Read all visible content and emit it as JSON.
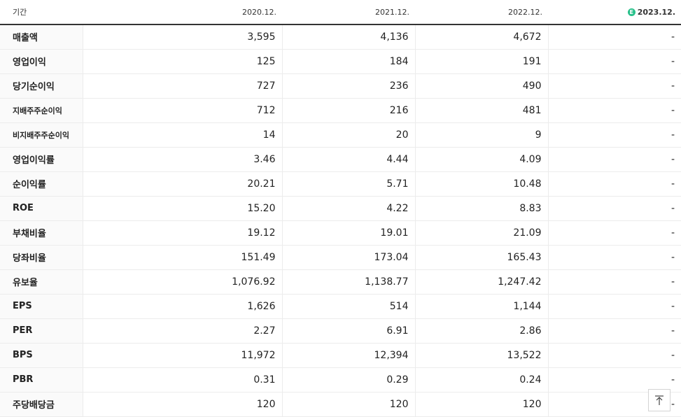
{
  "header": {
    "period_label": "기간",
    "years": [
      "2020.12.",
      "2021.12.",
      "2022.12.",
      "2023.12."
    ],
    "estimate_icon_glyph": "E",
    "estimate_icon": "estimate-icon",
    "estimate_color": "#27c08a"
  },
  "rows": [
    {
      "label": "매출액",
      "values": [
        "3,595",
        "4,136",
        "4,672",
        "-"
      ]
    },
    {
      "label": "영업이익",
      "values": [
        "125",
        "184",
        "191",
        "-"
      ]
    },
    {
      "label": "당기순이익",
      "values": [
        "727",
        "236",
        "490",
        "-"
      ]
    },
    {
      "label": "지배주주순이익",
      "values": [
        "712",
        "216",
        "481",
        "-"
      ]
    },
    {
      "label": "비지배주주순이익",
      "values": [
        "14",
        "20",
        "9",
        "-"
      ]
    },
    {
      "label": "영업이익률",
      "values": [
        "3.46",
        "4.44",
        "4.09",
        "-"
      ]
    },
    {
      "label": "순이익률",
      "values": [
        "20.21",
        "5.71",
        "10.48",
        "-"
      ]
    },
    {
      "label": "ROE",
      "values": [
        "15.20",
        "4.22",
        "8.83",
        "-"
      ]
    },
    {
      "label": "부채비율",
      "values": [
        "19.12",
        "19.01",
        "21.09",
        "-"
      ]
    },
    {
      "label": "당좌비율",
      "values": [
        "151.49",
        "173.04",
        "165.43",
        "-"
      ]
    },
    {
      "label": "유보율",
      "values": [
        "1,076.92",
        "1,138.77",
        "1,247.42",
        "-"
      ]
    },
    {
      "label": "EPS",
      "values": [
        "1,626",
        "514",
        "1,144",
        "-"
      ]
    },
    {
      "label": "PER",
      "values": [
        "2.27",
        "6.91",
        "2.86",
        "-"
      ]
    },
    {
      "label": "BPS",
      "values": [
        "11,972",
        "12,394",
        "13,522",
        "-"
      ]
    },
    {
      "label": "PBR",
      "values": [
        "0.31",
        "0.29",
        "0.24",
        "-"
      ]
    },
    {
      "label": "주당배당금",
      "values": [
        "120",
        "120",
        "120",
        "-"
      ]
    }
  ],
  "scroll_top_icon": "arrow-to-top-icon"
}
